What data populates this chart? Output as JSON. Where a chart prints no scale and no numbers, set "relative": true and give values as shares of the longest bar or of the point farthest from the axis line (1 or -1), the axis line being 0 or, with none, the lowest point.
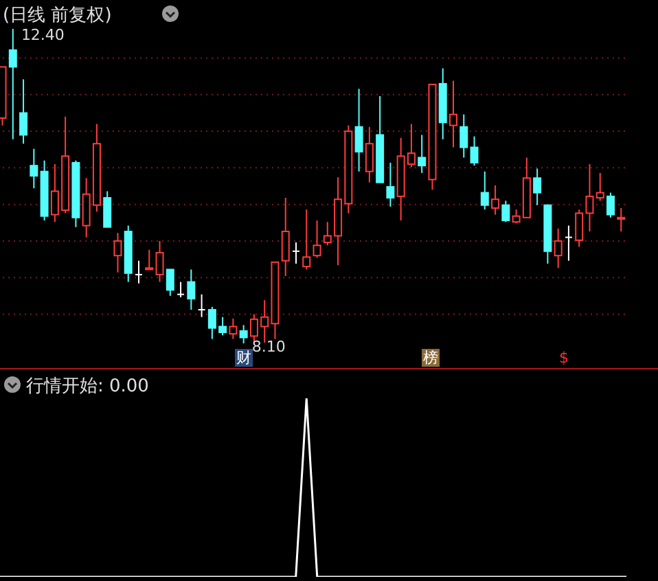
{
  "chart_data": [
    {
      "type": "candlestick",
      "title": "(日线 前复权)",
      "grid": true,
      "categories": [
        null,
        null,
        null,
        null,
        null,
        null,
        null,
        null,
        null,
        null,
        null,
        null,
        null,
        null,
        null,
        null,
        null,
        null,
        null,
        null,
        null,
        null,
        null,
        null,
        null,
        null,
        null,
        null,
        null,
        null,
        null,
        null,
        null,
        null,
        null,
        null,
        null,
        null,
        null,
        null,
        null,
        null,
        null,
        null,
        null,
        null,
        null,
        null,
        null,
        null,
        null,
        null,
        null,
        null,
        null,
        null,
        null,
        null,
        null,
        null
      ],
      "ohlc": [
        [
          11.18,
          11.88,
          11.08,
          11.88
        ],
        [
          12.11,
          12.4,
          10.89,
          11.88
        ],
        [
          11.25,
          11.71,
          10.83,
          10.95
        ],
        [
          10.53,
          10.76,
          10.22,
          10.39
        ],
        [
          10.45,
          10.6,
          9.78,
          9.84
        ],
        [
          9.86,
          10.55,
          9.76,
          10.18
        ],
        [
          9.92,
          11.2,
          9.88,
          10.66
        ],
        [
          10.57,
          10.6,
          9.69,
          9.82
        ],
        [
          9.71,
          10.36,
          9.55,
          10.14
        ],
        [
          9.99,
          11.1,
          9.9,
          10.83
        ],
        [
          10.09,
          10.18,
          9.69,
          9.69
        ],
        [
          9.3,
          9.61,
          9.07,
          9.5
        ],
        [
          9.63,
          9.71,
          8.94,
          9.06
        ],
        [
          9.04,
          9.23,
          8.92,
          9.04
        ],
        [
          9.11,
          9.38,
          9.11,
          9.13
        ],
        [
          9.04,
          9.5,
          8.94,
          9.34
        ],
        [
          9.11,
          9.11,
          8.75,
          8.83
        ],
        [
          8.77,
          8.94,
          8.73,
          8.77
        ],
        [
          8.94,
          9.11,
          8.56,
          8.71
        ],
        [
          8.56,
          8.77,
          8.46,
          8.56
        ],
        [
          8.56,
          8.6,
          8.16,
          8.31
        ],
        [
          8.33,
          8.46,
          8.21,
          8.25
        ],
        [
          8.23,
          8.44,
          8.16,
          8.33
        ],
        [
          8.27,
          8.35,
          8.1,
          8.18
        ],
        [
          8.2,
          8.5,
          8.12,
          8.43
        ],
        [
          8.33,
          8.69,
          8.11,
          8.46
        ],
        [
          8.37,
          9.21,
          8.16,
          9.21
        ],
        [
          9.23,
          10.09,
          9.02,
          9.63
        ],
        [
          9.36,
          9.48,
          9.19,
          9.36
        ],
        [
          9.15,
          9.93,
          9.11,
          9.28
        ],
        [
          9.3,
          9.78,
          9.27,
          9.44
        ],
        [
          9.48,
          9.76,
          9.44,
          9.57
        ],
        [
          9.57,
          10.37,
          9.17,
          10.07
        ],
        [
          10.01,
          11.08,
          9.88,
          11.0
        ],
        [
          11.06,
          11.58,
          10.45,
          10.72
        ],
        [
          10.45,
          11.06,
          10.3,
          10.83
        ],
        [
          10.95,
          11.48,
          10.3,
          10.3
        ],
        [
          10.24,
          10.57,
          9.97,
          10.09
        ],
        [
          10.11,
          10.91,
          9.78,
          10.66
        ],
        [
          10.55,
          11.1,
          10.51,
          10.7
        ],
        [
          10.64,
          10.95,
          10.43,
          10.53
        ],
        [
          10.34,
          11.64,
          10.2,
          11.64
        ],
        [
          11.65,
          11.86,
          10.89,
          11.12
        ],
        [
          11.08,
          11.69,
          10.78,
          11.23
        ],
        [
          11.06,
          11.23,
          10.64,
          10.78
        ],
        [
          10.78,
          10.93,
          10.53,
          10.57
        ],
        [
          10.16,
          10.45,
          9.93,
          9.99
        ],
        [
          9.95,
          10.26,
          9.86,
          10.07
        ],
        [
          9.99,
          10.05,
          9.76,
          9.78
        ],
        [
          9.76,
          9.93,
          9.74,
          9.84
        ],
        [
          9.82,
          10.64,
          9.82,
          10.36
        ],
        [
          10.36,
          10.49,
          9.99,
          10.16
        ],
        [
          9.99,
          9.99,
          9.19,
          9.36
        ],
        [
          9.3,
          9.67,
          9.13,
          9.5
        ],
        [
          9.55,
          9.71,
          9.23,
          9.55
        ],
        [
          9.51,
          9.93,
          9.42,
          9.88
        ],
        [
          9.88,
          10.55,
          9.63,
          10.11
        ],
        [
          10.09,
          10.43,
          10.05,
          10.16
        ],
        [
          10.11,
          10.16,
          9.82,
          9.86
        ],
        [
          9.8,
          9.95,
          9.63,
          9.82
        ]
      ],
      "colors": [
        "#ff3c3c",
        "#54fcfc",
        "#54fcfc",
        "#54fcfc",
        "#54fcfc",
        "#ff3c3c",
        "#ff3c3c",
        "#54fcfc",
        "#ff3c3c",
        "#ff3c3c",
        "#54fcfc",
        "#ff3c3c",
        "#54fcfc",
        "#ffffff",
        "#ff3c3c",
        "#ff3c3c",
        "#54fcfc",
        "#ffffff",
        "#54fcfc",
        "#ffffff",
        "#54fcfc",
        "#54fcfc",
        "#ff3c3c",
        "#54fcfc",
        "#ff3c3c",
        "#ff3c3c",
        "#ff3c3c",
        "#ff3c3c",
        "#ffffff",
        "#ff3c3c",
        "#ff3c3c",
        "#ff3c3c",
        "#ff3c3c",
        "#ff3c3c",
        "#54fcfc",
        "#ff3c3c",
        "#54fcfc",
        "#54fcfc",
        "#ff3c3c",
        "#ff3c3c",
        "#54fcfc",
        "#ff3c3c",
        "#54fcfc",
        "#ff3c3c",
        "#54fcfc",
        "#54fcfc",
        "#54fcfc",
        "#ff3c3c",
        "#54fcfc",
        "#ff3c3c",
        "#ff3c3c",
        "#54fcfc",
        "#54fcfc",
        "#ff3c3c",
        "#ffffff",
        "#ff3c3c",
        "#ff3c3c",
        "#ff3c3c",
        "#54fcfc",
        "#ff3c3c"
      ],
      "yticks": [
        {
          "value": 12.0,
          "label": null
        },
        {
          "value": 11.5,
          "label": null
        },
        {
          "value": 11.0,
          "label": null
        },
        {
          "value": 10.5,
          "label": null
        },
        {
          "value": 10.0,
          "label": null
        },
        {
          "value": 9.5,
          "label": null
        },
        {
          "value": 9.0,
          "label": null
        },
        {
          "value": 8.5,
          "label": null
        }
      ],
      "annotations": [
        "12.40",
        "8.10",
        "财",
        "榜",
        "$"
      ]
    },
    {
      "type": "line",
      "title": "行情开始: 0.00",
      "relative": true,
      "color": "#ffffff",
      "categories": [
        null,
        null,
        null,
        null,
        null,
        null,
        null,
        null,
        null,
        null,
        null,
        null,
        null,
        null,
        null,
        null,
        null,
        null,
        null,
        null,
        null,
        null,
        null,
        null,
        null,
        null,
        null,
        null,
        null,
        null,
        null,
        null,
        null,
        null,
        null,
        null,
        null,
        null,
        null,
        null,
        null,
        null,
        null,
        null,
        null,
        null,
        null,
        null,
        null,
        null,
        null,
        null,
        null,
        null,
        null,
        null,
        null,
        null,
        null,
        null
      ],
      "values": [
        0,
        0,
        0,
        0,
        0,
        0,
        0,
        0,
        0,
        0,
        0,
        0,
        0,
        0,
        0,
        0,
        0,
        0,
        0,
        0,
        0,
        0,
        0,
        0,
        0,
        0,
        0,
        0,
        0,
        1,
        0,
        0,
        0,
        0,
        0,
        0,
        0,
        0,
        0,
        0,
        0,
        0,
        0,
        0,
        0,
        0,
        0,
        0,
        0,
        0,
        0,
        0,
        0,
        0,
        0,
        0,
        0,
        0,
        0,
        0
      ]
    }
  ]
}
